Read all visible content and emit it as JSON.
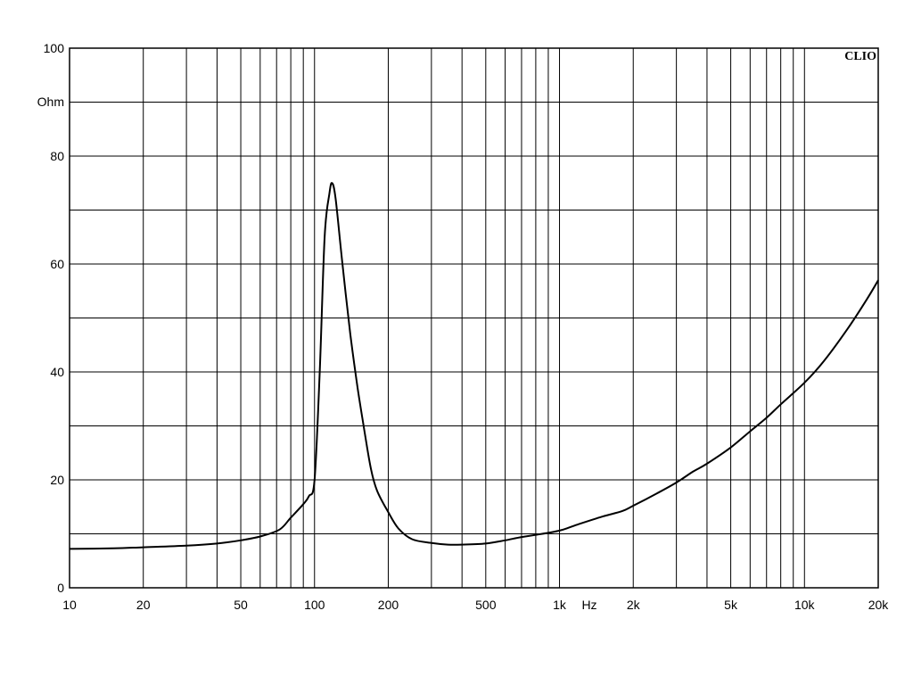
{
  "chart_data": {
    "type": "line",
    "brand": "CLIO",
    "ylabel": "Ohm",
    "xlabel": "Hz",
    "xscale": "log",
    "xlim": [
      10,
      20000
    ],
    "ylim": [
      0,
      100
    ],
    "grid": true,
    "x_tick_labels": [
      {
        "value": 10,
        "label": "10"
      },
      {
        "value": 20,
        "label": "20"
      },
      {
        "value": 50,
        "label": "50"
      },
      {
        "value": 100,
        "label": "100"
      },
      {
        "value": 200,
        "label": "200"
      },
      {
        "value": 500,
        "label": "500"
      },
      {
        "value": 1000,
        "label": "1k"
      },
      {
        "value": 2000,
        "label": "2k"
      },
      {
        "value": 5000,
        "label": "5k"
      },
      {
        "value": 10000,
        "label": "10k"
      },
      {
        "value": 20000,
        "label": "20k"
      }
    ],
    "y_tick_labels": [
      {
        "value": 0,
        "label": "0"
      },
      {
        "value": 20,
        "label": "20"
      },
      {
        "value": 40,
        "label": "40"
      },
      {
        "value": 60,
        "label": "60"
      },
      {
        "value": 80,
        "label": "80"
      },
      {
        "value": 100,
        "label": "100"
      }
    ],
    "series": [
      {
        "color": "#000000",
        "x": [
          10,
          15,
          20,
          30,
          40,
          50,
          60,
          72,
          80,
          90,
          95,
          100,
          105,
          110,
          115,
          118,
          122,
          130,
          140,
          150,
          160,
          170,
          180,
          200,
          220,
          250,
          300,
          350,
          400,
          500,
          600,
          700,
          800,
          1000,
          1200,
          1500,
          1800,
          2000,
          2500,
          3000,
          3500,
          4000,
          5000,
          6000,
          7000,
          8000,
          10000,
          12000,
          15000,
          18000,
          20000
        ],
        "y": [
          7.2,
          7.3,
          7.5,
          7.8,
          8.2,
          8.8,
          9.5,
          10.8,
          13,
          15.5,
          17,
          20,
          40,
          65,
          73,
          75,
          72,
          60,
          47,
          37,
          29,
          22,
          18,
          14,
          11,
          9,
          8.3,
          8,
          8,
          8.2,
          8.8,
          9.4,
          9.8,
          10.6,
          11.8,
          13.2,
          14.2,
          15.2,
          17.5,
          19.5,
          21.5,
          23,
          26,
          29,
          31.5,
          34,
          38,
          42,
          48,
          53.5,
          57
        ]
      }
    ]
  }
}
